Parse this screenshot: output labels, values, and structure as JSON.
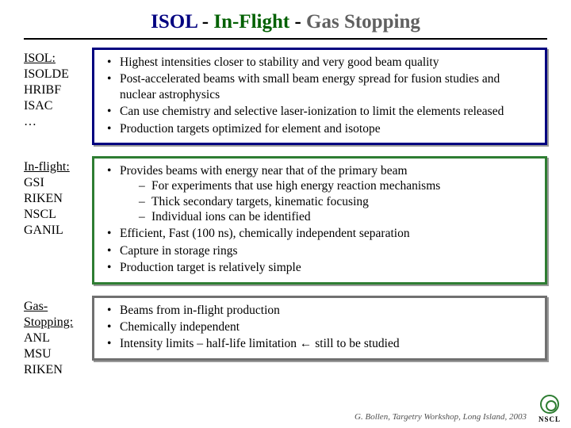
{
  "title": {
    "t1": "ISOL",
    "sep": "  -  ",
    "t2": "In-Flight",
    "t3": "Gas Stopping"
  },
  "sections": [
    {
      "label_lines": [
        "ISOL:",
        "ISOLDE",
        "HRIBF",
        "ISAC",
        "…"
      ],
      "label_underline_first": true,
      "border": "#000080",
      "bullets": [
        {
          "text": "Highest intensities closer to stability and very good beam quality"
        },
        {
          "text": "Post-accelerated beams with small beam energy spread for fusion studies and nuclear astrophysics"
        },
        {
          "text": "Can use chemistry and selective laser-ionization to limit the elements released"
        },
        {
          "text": "Production targets optimized for element and isotope"
        }
      ]
    },
    {
      "label_lines": [
        "In-flight:",
        "GSI",
        "RIKEN",
        "NSCL",
        "GANIL"
      ],
      "label_underline_first": true,
      "border": "#2e7d32",
      "bullets": [
        {
          "text": "Provides beams with energy near that of the primary beam",
          "sub": [
            "For experiments that use high energy reaction mechanisms",
            "Thick secondary targets, kinematic focusing",
            "Individual ions can be identified"
          ]
        },
        {
          "text": "Efficient, Fast (100 ns), chemically independent separation"
        },
        {
          "text": "Capture in storage rings"
        },
        {
          "text": "Production target is relatively simple"
        }
      ]
    },
    {
      "label_lines": [
        "Gas-",
        "Stopping:",
        "ANL",
        "MSU",
        "RIKEN"
      ],
      "label_underline_first": false,
      "label_underline_two": true,
      "border": "#707070",
      "bullets": [
        {
          "text": "Beams from in-flight production"
        },
        {
          "text": "Chemically independent"
        },
        {
          "text": "Intensity limits – half-life limitation  ←  still to be studied"
        }
      ]
    }
  ],
  "footer": "G. Bollen, Targetry Workshop, Long Island, 2003",
  "logo_text": "NSCL"
}
